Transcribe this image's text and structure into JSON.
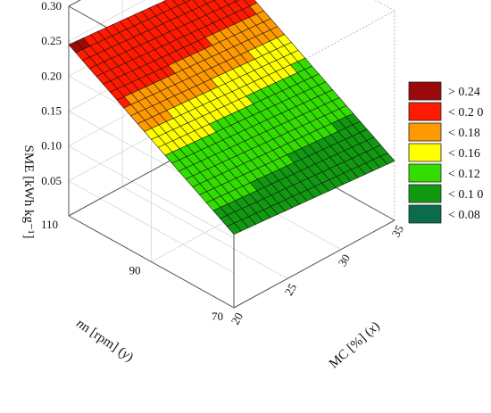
{
  "chart_data": {
    "type": "surface3d",
    "title": "",
    "zlabel": "SME [kWh kg⁻¹]",
    "xlabel_main": "MC [%] (",
    "xlabel_var": "x",
    "xlabel_end": ")",
    "ylabel_main": "n [rpm] (",
    "ylabel_var": "y",
    "ylabel_end": ")",
    "x_ticks": [
      "20",
      "25",
      "30",
      "35"
    ],
    "y_ticks": [
      "70",
      "90",
      "110"
    ],
    "z_ticks": [
      "0.05",
      "0.10",
      "0.15",
      "0.20",
      "0.25",
      "0.30"
    ],
    "xlim": [
      20,
      35
    ],
    "ylim": [
      70,
      110
    ],
    "zlim": [
      0,
      0.3
    ],
    "corner_values": {
      "x20_y70": 0.105,
      "x35_y70": 0.085,
      "x20_y110": 0.245,
      "x35_y110": 0.225
    },
    "legend": [
      {
        "label": "> 0.24",
        "color": "#9b0a0a"
      },
      {
        "label": "< 0.2 0",
        "color": "#ff1a00"
      },
      {
        "label": "< 0.18",
        "color": "#ff9900"
      },
      {
        "label": "< 0.16",
        "color": "#ffff00"
      },
      {
        "label": "< 0.12",
        "color": "#33dd00"
      },
      {
        "label": "< 0.1 0",
        "color": "#119911"
      },
      {
        "label": "< 0.08",
        "color": "#0c6b4c"
      }
    ],
    "grid": true,
    "legend_position": "right"
  }
}
